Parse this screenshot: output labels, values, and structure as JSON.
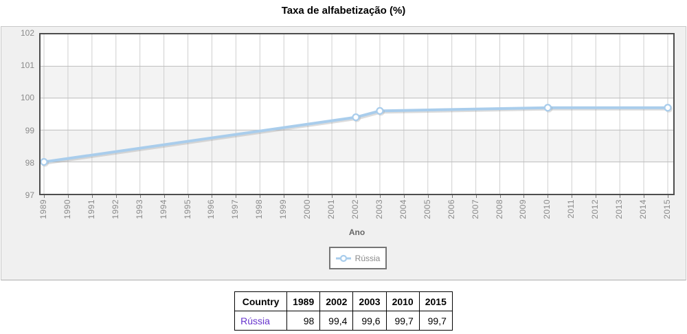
{
  "title": "Taxa de alfabetização (%)",
  "chart_data": {
    "type": "line",
    "title": "Taxa de alfabetização (%)",
    "xlabel": "Ano",
    "ylabel": "",
    "x_ticks": [
      1989,
      1990,
      1991,
      1992,
      1993,
      1994,
      1995,
      1996,
      1997,
      1998,
      1999,
      2000,
      2001,
      2002,
      2003,
      2004,
      2005,
      2006,
      2007,
      2008,
      2009,
      2010,
      2011,
      2012,
      2013,
      2014,
      2015
    ],
    "xlim": [
      1989,
      2015
    ],
    "ylim": [
      97,
      102
    ],
    "y_ticks": [
      97,
      98,
      99,
      100,
      101,
      102
    ],
    "grid": true,
    "legend_position": "below-plot",
    "series": [
      {
        "name": "Rússia",
        "x": [
          1989,
          2002,
          2003,
          2010,
          2015
        ],
        "values": [
          98,
          99.4,
          99.6,
          99.7,
          99.7
        ]
      }
    ]
  },
  "legend": {
    "label": "Rússia",
    "marker_icon": "circle-with-line"
  },
  "table": {
    "headers": [
      "Country",
      "1989",
      "2002",
      "2003",
      "2010",
      "2015"
    ],
    "rows": [
      {
        "country": "Rússia",
        "values": [
          "98",
          "99,4",
          "99,6",
          "99,7",
          "99,7"
        ]
      }
    ]
  },
  "colors": {
    "series_line": "#a9cdec",
    "marker_fill": "#ffffff",
    "line_shadow": "#9a9a9a",
    "grid_vertical": "#cfcfcf",
    "grid_horizontal": "#bdbdbd",
    "band_shade": "#f3f3f3",
    "plot_border": "#4d4d4d",
    "container_bg": "#f0f0f0",
    "tick_text": "#8a8a8a",
    "country_link": "#6633cc",
    "table_border": "#000000"
  }
}
